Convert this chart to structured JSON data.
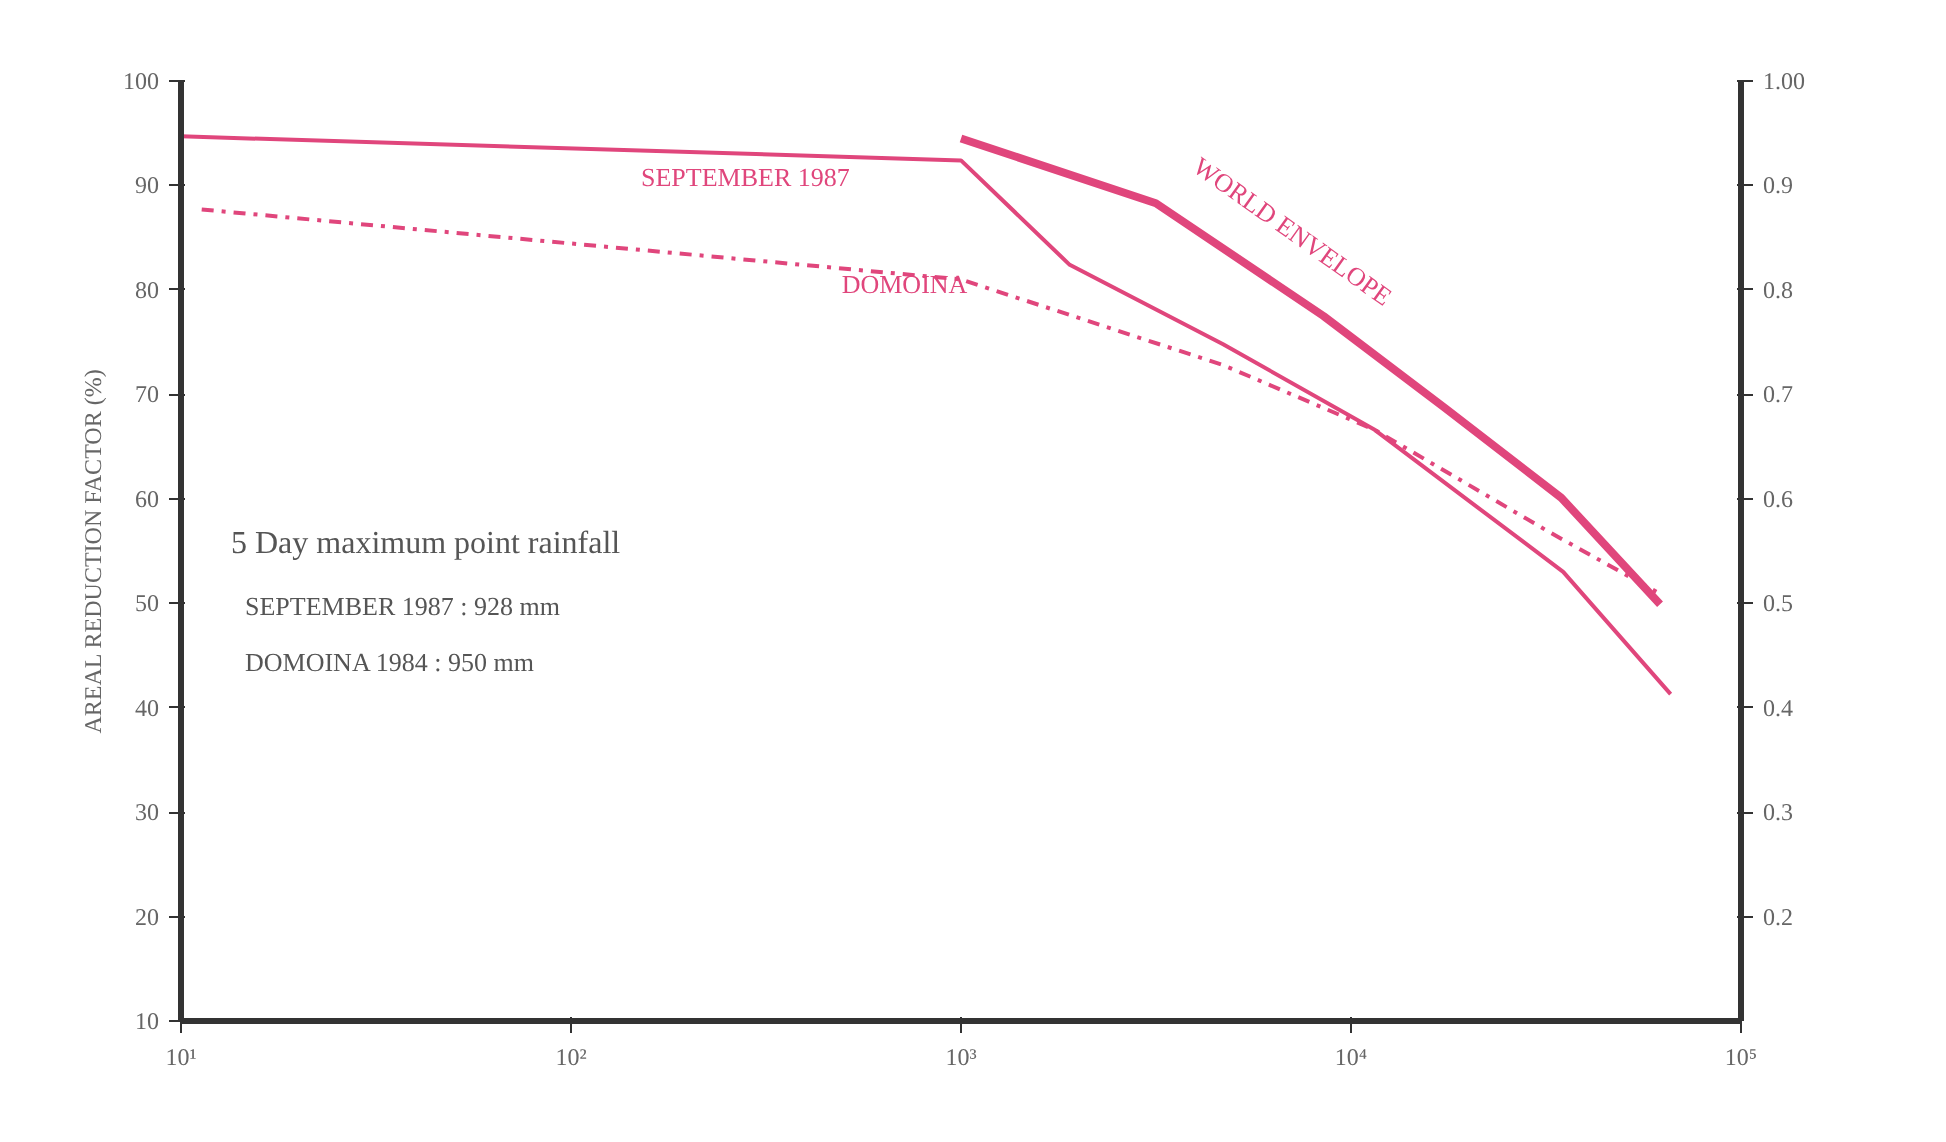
{
  "chart_data": {
    "type": "line",
    "ylabel": "AREAL REDUCTION FACTOR (%)",
    "log": "x",
    "grid": false,
    "marker": "none",
    "xlim": [
      10,
      100000
    ],
    "xticks": [
      {
        "value": 10,
        "label": "10¹"
      },
      {
        "value": 100,
        "label": "10²"
      },
      {
        "value": 1000,
        "label": "10³"
      },
      {
        "value": 10000,
        "label": "10⁴"
      },
      {
        "value": 100000,
        "label": "10⁵"
      }
    ],
    "ylim": [
      10,
      100
    ],
    "yticks": [
      10,
      20,
      30,
      40,
      50,
      60,
      70,
      80,
      90,
      100
    ],
    "y2lim": [
      0.1,
      1.0
    ],
    "y2ticks": [
      0.2,
      0.3,
      0.4,
      0.5,
      0.6,
      0.7,
      0.8,
      {
        "value": 0.9,
        "label": "0.9"
      },
      {
        "value": 1.0,
        "label": "1.00"
      }
    ],
    "series": [
      {
        "name": "SEPTEMBER 1987",
        "color": "#e0467c",
        "line_style": "solid",
        "x": [
          10,
          1000,
          1900,
          4700,
          11500,
          35000,
          66000
        ],
        "values": [
          94.7,
          92.4,
          82.4,
          74.8,
          66.6,
          53,
          41.3
        ]
      },
      {
        "name": "DOMOINA",
        "color": "#e0467c",
        "line_style": "dashed",
        "x": [
          11.3,
          1000,
          4700,
          11500,
          31600,
          62000
        ],
        "values": [
          87.7,
          81,
          72.8,
          66.6,
          57,
          50.9
        ]
      },
      {
        "name": "WORLD ENVELOPE",
        "color": "#e0467c",
        "line_style": "solid",
        "x": [
          1000,
          3160,
          8500,
          17400,
          34600,
          62000
        ],
        "values": [
          94.5,
          88.3,
          77.5,
          68.7,
          60.1,
          49.9
        ]
      }
    ],
    "annotations": [
      "5 Day maximum point rainfall",
      "SEPTEMBER 1987 : 928 mm",
      "DOMOINA      1984 : 950 mm"
    ]
  }
}
